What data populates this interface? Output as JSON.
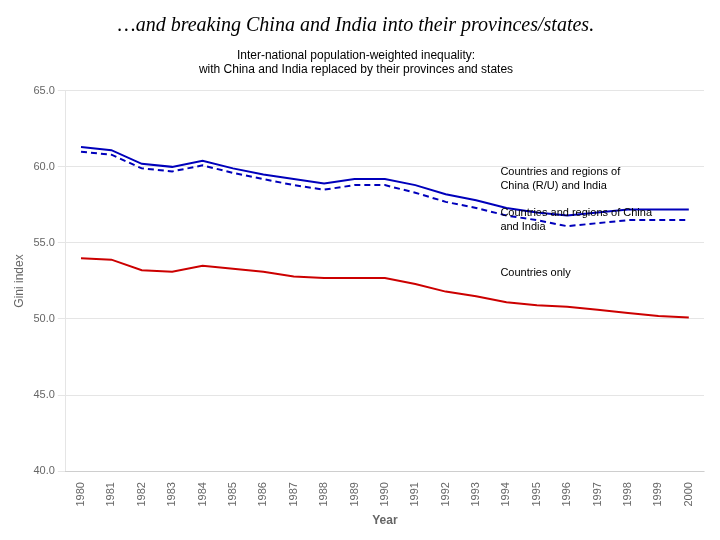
{
  "chart_data": {
    "type": "line",
    "title": "…and breaking China and India into their provinces/states.",
    "subtitle": [
      "Inter-national population-weighted inequality:",
      "with China and India replaced by their provinces and states"
    ],
    "xlabel": "Year",
    "ylabel": "Gini index",
    "x": [
      1980,
      1981,
      1982,
      1983,
      1984,
      1985,
      1986,
      1987,
      1988,
      1989,
      1990,
      1991,
      1992,
      1993,
      1994,
      1995,
      1996,
      1997,
      1998,
      1999,
      2000
    ],
    "series": [
      {
        "color": "#0000bb",
        "line_style": "solid",
        "values": [
          61.3,
          61.1,
          60.2,
          60.0,
          60.4,
          59.9,
          59.5,
          59.2,
          58.9,
          59.2,
          59.2,
          58.8,
          58.2,
          57.8,
          57.3,
          57.0,
          56.8,
          57.0,
          57.2,
          57.2,
          57.2
        ]
      },
      {
        "color": "#0000bb",
        "line_style": "dashed",
        "values": [
          61.0,
          60.8,
          59.9,
          59.7,
          60.1,
          59.6,
          59.2,
          58.8,
          58.5,
          58.8,
          58.8,
          58.3,
          57.7,
          57.3,
          56.8,
          56.5,
          56.1,
          56.3,
          56.5,
          56.5,
          56.5
        ]
      },
      {
        "color": "#cc0000",
        "line_style": "solid",
        "values": [
          54.0,
          53.9,
          53.2,
          53.1,
          53.5,
          53.3,
          53.1,
          52.8,
          52.7,
          52.7,
          52.7,
          52.3,
          51.8,
          51.5,
          51.1,
          50.9,
          50.8,
          50.6,
          50.4,
          50.2,
          50.1
        ]
      }
    ],
    "xlim": [
      1979.5,
      2000.5
    ],
    "xticks": [
      1980,
      1981,
      1982,
      1983,
      1984,
      1985,
      1986,
      1987,
      1988,
      1989,
      1990,
      1991,
      1992,
      1993,
      1994,
      1995,
      1996,
      1997,
      1998,
      1999,
      2000
    ],
    "ylim": [
      40.0,
      65.0
    ],
    "yticks": [
      {
        "value": 40.0,
        "label": "40.0"
      },
      {
        "value": 45.0,
        "label": "45.0"
      },
      {
        "value": 50.0,
        "label": "50.0"
      },
      {
        "value": 55.0,
        "label": "55.0"
      },
      {
        "value": 60.0,
        "label": "60.0"
      },
      {
        "value": 65.0,
        "label": "65.0"
      }
    ],
    "grid": "y",
    "annotations": [
      {
        "text": "Countries and regions of\nChina (R/U) and India",
        "x": 1993.8,
        "y": 59.2
      },
      {
        "text": "Countries and regions of China\nand India",
        "x": 1993.8,
        "y": 56.5
      },
      {
        "text": "Countries only",
        "x": 1993.8,
        "y": 53.0
      }
    ]
  }
}
